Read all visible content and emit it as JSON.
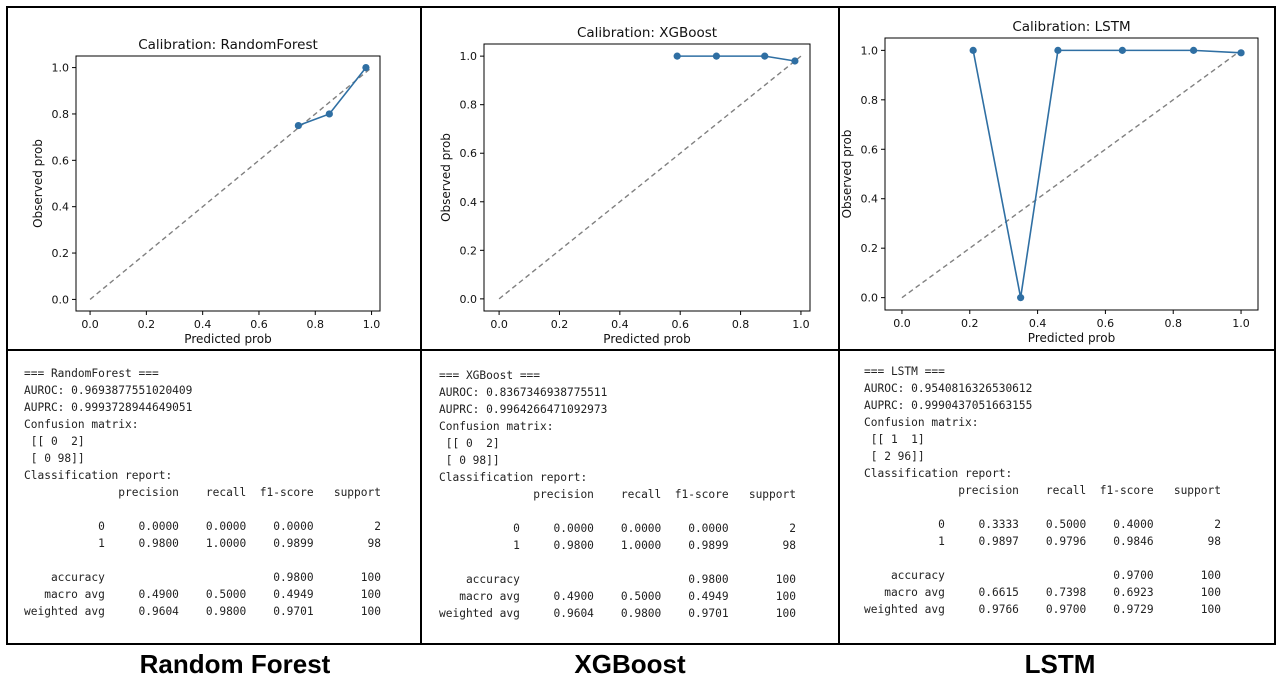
{
  "chart_data": [
    {
      "type": "line",
      "title": "Calibration: RandomForest",
      "xlabel": "Predicted prob",
      "ylabel": "Observed prob",
      "xlim": [
        -0.05,
        1.03
      ],
      "ylim": [
        -0.05,
        1.05
      ],
      "xticks": [
        "0.0",
        "0.2",
        "0.4",
        "0.6",
        "0.8",
        "1.0"
      ],
      "yticks": [
        "0.0",
        "0.2",
        "0.4",
        "0.6",
        "0.8",
        "1.0"
      ],
      "grid": false,
      "reference_line": {
        "x": [
          0,
          1
        ],
        "y": [
          0,
          1
        ],
        "style": "dashed",
        "color": "#808080"
      },
      "series": [
        {
          "x": [
            0.74,
            0.85,
            0.98
          ],
          "y": [
            0.75,
            0.8,
            1.0
          ],
          "color": "#2f6fa3"
        }
      ]
    },
    {
      "type": "line",
      "title": "Calibration: XGBoost",
      "xlabel": "Predicted prob",
      "ylabel": "Observed prob",
      "xlim": [
        -0.05,
        1.03
      ],
      "ylim": [
        -0.05,
        1.05
      ],
      "xticks": [
        "0.0",
        "0.2",
        "0.4",
        "0.6",
        "0.8",
        "1.0"
      ],
      "yticks": [
        "0.0",
        "0.2",
        "0.4",
        "0.6",
        "0.8",
        "1.0"
      ],
      "grid": false,
      "reference_line": {
        "x": [
          0,
          1
        ],
        "y": [
          0,
          1
        ],
        "style": "dashed",
        "color": "#808080"
      },
      "series": [
        {
          "x": [
            0.59,
            0.72,
            0.88,
            0.98
          ],
          "y": [
            1.0,
            1.0,
            1.0,
            0.98
          ],
          "color": "#2f6fa3"
        }
      ]
    },
    {
      "type": "line",
      "title": "Calibration: LSTM",
      "xlabel": "Predicted prob",
      "ylabel": "Observed prob",
      "xlim": [
        -0.05,
        1.05
      ],
      "ylim": [
        -0.05,
        1.05
      ],
      "xticks": [
        "0.0",
        "0.2",
        "0.4",
        "0.6",
        "0.8",
        "1.0"
      ],
      "yticks": [
        "0.0",
        "0.2",
        "0.4",
        "0.6",
        "0.8",
        "1.0"
      ],
      "grid": false,
      "reference_line": {
        "x": [
          0,
          1
        ],
        "y": [
          0,
          1
        ],
        "style": "dashed",
        "color": "#808080"
      },
      "series": [
        {
          "x": [
            0.21,
            0.35,
            0.46,
            0.65,
            0.86,
            1.0
          ],
          "y": [
            1.0,
            0.0,
            1.0,
            1.0,
            1.0,
            0.99
          ],
          "color": "#2f6fa3"
        }
      ]
    }
  ],
  "reports": [
    {
      "lines": [
        "=== RandomForest ===",
        "AUROC: 0.9693877551020409",
        "AUPRC: 0.9993728944649051",
        "Confusion matrix:",
        " [[ 0  2]",
        " [ 0 98]]",
        "Classification report:",
        "              precision    recall  f1-score   support",
        "",
        "           0     0.0000    0.0000    0.0000         2",
        "           1     0.9800    1.0000    0.9899        98",
        "",
        "    accuracy                         0.9800       100",
        "   macro avg     0.4900    0.5000    0.4949       100",
        "weighted avg     0.9604    0.9800    0.9701       100"
      ]
    },
    {
      "lines": [
        "=== XGBoost ===",
        "AUROC: 0.8367346938775511",
        "AUPRC: 0.9964266471092973",
        "Confusion matrix:",
        " [[ 0  2]",
        " [ 0 98]]",
        "Classification report:",
        "              precision    recall  f1-score   support",
        "",
        "           0     0.0000    0.0000    0.0000         2",
        "           1     0.9800    1.0000    0.9899        98",
        "",
        "    accuracy                         0.9800       100",
        "   macro avg     0.4900    0.5000    0.4949       100",
        "weighted avg     0.9604    0.9800    0.9701       100"
      ]
    },
    {
      "lines": [
        "=== LSTM ===",
        "AUROC: 0.9540816326530612",
        "AUPRC: 0.9990437051663155",
        "Confusion matrix:",
        " [[ 1  1]",
        " [ 2 96]]",
        "Classification report:",
        "              precision    recall  f1-score   support",
        "",
        "           0     0.3333    0.5000    0.4000         2",
        "           1     0.9897    0.9796    0.9846        98",
        "",
        "    accuracy                         0.9700       100",
        "   macro avg     0.6615    0.7398    0.6923       100",
        "weighted avg     0.9766    0.9700    0.9729       100"
      ]
    }
  ],
  "captions": {
    "rf": "Random Forest",
    "xgb": "XGBoost",
    "lstm": "LSTM"
  },
  "colors": {
    "series": "#2f6fa3",
    "reference": "#808080",
    "text": "#222222"
  }
}
